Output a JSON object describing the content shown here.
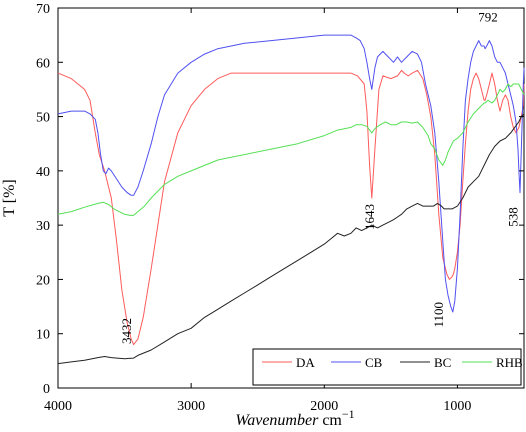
{
  "chart_data": {
    "type": "line",
    "xlabel_italic": "Wavenumber",
    "xlabel_unit": " cm",
    "xlabel_sup": "−1",
    "ylabel": "T [%]",
    "xlim": [
      4000,
      500
    ],
    "ylim": [
      0,
      70
    ],
    "x_ticks": [
      4000,
      3000,
      2000,
      1000
    ],
    "y_ticks": [
      0,
      10,
      20,
      30,
      40,
      50,
      60,
      70
    ],
    "legend_position": "bottom-right",
    "grid": false,
    "series": [
      {
        "name": "DA",
        "color": "#ff5a5a",
        "x": [
          4000,
          3900,
          3800,
          3760,
          3720,
          3690,
          3650,
          3600,
          3560,
          3520,
          3480,
          3450,
          3432,
          3400,
          3360,
          3300,
          3200,
          3100,
          3000,
          2900,
          2800,
          2700,
          2600,
          2400,
          2200,
          2000,
          1900,
          1800,
          1750,
          1700,
          1680,
          1660,
          1643,
          1620,
          1590,
          1560,
          1500,
          1450,
          1420,
          1400,
          1370,
          1340,
          1300,
          1260,
          1230,
          1200,
          1170,
          1140,
          1110,
          1080,
          1060,
          1040,
          1030,
          1020,
          1000,
          980,
          960,
          940,
          920,
          900,
          880,
          860,
          840,
          820,
          800,
          792,
          780,
          760,
          740,
          720,
          700,
          680,
          660,
          640,
          620,
          600,
          580,
          560,
          538,
          520,
          505,
          500
        ],
        "y": [
          58,
          57,
          55,
          53,
          47,
          43,
          40,
          35,
          27,
          18,
          12,
          9,
          8,
          9,
          13,
          22,
          38,
          47,
          52,
          55,
          57,
          58,
          58,
          58,
          58,
          58,
          58,
          58,
          57.5,
          56,
          51,
          41,
          35,
          44,
          55,
          57.5,
          57,
          57.5,
          58.5,
          58,
          57.5,
          58,
          58.5,
          57,
          54,
          50,
          43,
          32,
          24,
          21,
          20,
          20.5,
          21,
          22,
          25,
          30,
          38,
          45,
          51,
          55,
          57,
          58,
          57,
          55,
          53,
          53,
          54,
          56,
          58,
          56,
          53,
          51,
          53,
          54,
          53,
          50,
          48,
          47,
          48,
          50,
          52,
          56
        ]
      },
      {
        "name": "CB",
        "color": "#5050f0",
        "x": [
          4000,
          3900,
          3800,
          3760,
          3720,
          3700,
          3680,
          3660,
          3640,
          3620,
          3600,
          3560,
          3520,
          3480,
          3450,
          3432,
          3400,
          3360,
          3300,
          3250,
          3200,
          3100,
          3000,
          2900,
          2800,
          2700,
          2600,
          2400,
          2200,
          2000,
          1900,
          1800,
          1760,
          1730,
          1700,
          1680,
          1660,
          1643,
          1620,
          1600,
          1580,
          1560,
          1520,
          1480,
          1450,
          1420,
          1380,
          1340,
          1300,
          1270,
          1240,
          1200,
          1170,
          1140,
          1110,
          1090,
          1070,
          1050,
          1035,
          1020,
          1000,
          980,
          960,
          940,
          920,
          900,
          880,
          860,
          840,
          820,
          800,
          792,
          780,
          760,
          740,
          720,
          700,
          680,
          660,
          640,
          620,
          600,
          580,
          560,
          545,
          538,
          530,
          515,
          505,
          500
        ],
        "y": [
          50.5,
          51,
          51,
          50.5,
          49.5,
          47,
          43,
          40,
          39.5,
          40.5,
          40,
          38.5,
          37,
          36,
          35.5,
          35.5,
          37,
          40,
          45,
          50,
          54,
          58,
          60,
          61.5,
          62.5,
          63,
          63.5,
          64,
          64.5,
          65,
          65,
          65,
          64.5,
          64,
          62.5,
          60,
          57,
          55,
          59,
          61,
          61.5,
          62,
          61,
          60,
          61,
          60,
          61,
          62,
          61.5,
          60,
          56,
          52,
          47,
          38,
          27,
          20,
          17,
          15,
          14,
          16,
          22,
          32,
          44,
          53,
          57,
          60,
          62,
          63,
          64,
          63,
          63,
          62.5,
          63,
          64,
          63,
          61,
          60,
          60,
          59,
          58,
          56,
          54,
          52,
          49,
          44,
          40,
          36,
          48,
          56,
          59
        ]
      },
      {
        "name": "BC",
        "color": "#222222",
        "x": [
          4000,
          3900,
          3800,
          3700,
          3650,
          3600,
          3500,
          3432,
          3400,
          3300,
          3200,
          3100,
          3000,
          2900,
          2800,
          2700,
          2600,
          2500,
          2400,
          2300,
          2200,
          2100,
          2000,
          1950,
          1900,
          1850,
          1800,
          1760,
          1720,
          1680,
          1643,
          1600,
          1560,
          1520,
          1480,
          1450,
          1420,
          1380,
          1340,
          1300,
          1260,
          1220,
          1180,
          1150,
          1120,
          1100,
          1070,
          1040,
          1000,
          960,
          920,
          880,
          840,
          800,
          760,
          720,
          680,
          640,
          600,
          570,
          540,
          520,
          500
        ],
        "y": [
          4.5,
          4.8,
          5.1,
          5.6,
          5.8,
          5.6,
          5.4,
          5.5,
          6,
          7,
          8.5,
          10,
          11,
          13,
          14.5,
          16,
          17.5,
          19,
          20.5,
          22,
          23.5,
          25,
          26.5,
          27.5,
          28.5,
          28,
          28.5,
          29.5,
          29,
          29.5,
          30,
          29.5,
          30,
          30.5,
          31,
          31.5,
          32,
          33,
          33.5,
          34,
          33.5,
          33.5,
          33.5,
          34,
          33.5,
          33,
          33,
          33,
          33.5,
          35,
          37,
          38,
          39,
          41,
          43,
          44.5,
          45.5,
          46,
          47,
          48,
          49,
          50,
          50.5
        ]
      },
      {
        "name": "RHB",
        "color": "#55e055",
        "x": [
          4000,
          3900,
          3800,
          3700,
          3660,
          3620,
          3580,
          3540,
          3500,
          3460,
          3432,
          3400,
          3350,
          3300,
          3200,
          3100,
          3000,
          2900,
          2800,
          2700,
          2600,
          2400,
          2200,
          2000,
          1900,
          1800,
          1760,
          1720,
          1680,
          1660,
          1643,
          1620,
          1580,
          1540,
          1500,
          1460,
          1420,
          1380,
          1340,
          1300,
          1260,
          1220,
          1200,
          1170,
          1140,
          1110,
          1090,
          1070,
          1050,
          1030,
          1000,
          960,
          920,
          880,
          860,
          840,
          820,
          800,
          792,
          770,
          740,
          720,
          700,
          680,
          660,
          640,
          620,
          600,
          580,
          560,
          540,
          520,
          500
        ],
        "y": [
          32,
          32.5,
          33.3,
          34,
          34.2,
          33.8,
          33,
          32.5,
          32,
          31.8,
          31.8,
          32.5,
          33.5,
          35,
          37.5,
          39,
          40,
          41,
          42,
          42.5,
          43,
          44,
          45,
          46.5,
          47.5,
          48,
          48.5,
          48.5,
          48.2,
          47.5,
          47,
          47.8,
          48.5,
          49,
          48.5,
          48.5,
          49,
          49,
          48.8,
          49,
          48,
          46.5,
          45,
          44,
          42,
          41,
          42,
          43.5,
          44.5,
          45.5,
          46,
          47,
          49,
          50.5,
          51,
          51.5,
          52,
          52.5,
          52.5,
          53,
          52.5,
          53,
          54,
          55,
          54.5,
          55,
          56,
          55.5,
          56,
          56,
          56,
          55,
          54
        ]
      }
    ],
    "annotations": [
      {
        "text": "3432",
        "x": 3450,
        "y": 10.5,
        "rotate": -90
      },
      {
        "text": "1643",
        "x": 1625,
        "y": 31.5,
        "rotate": -90
      },
      {
        "text": "1100",
        "x": 1110,
        "y": 13.5,
        "rotate": -90
      },
      {
        "text": "538",
        "x": 548,
        "y": 31.5,
        "rotate": -90
      },
      {
        "text": "792",
        "x": 770,
        "y": 67.5,
        "rotate": 0
      }
    ]
  }
}
